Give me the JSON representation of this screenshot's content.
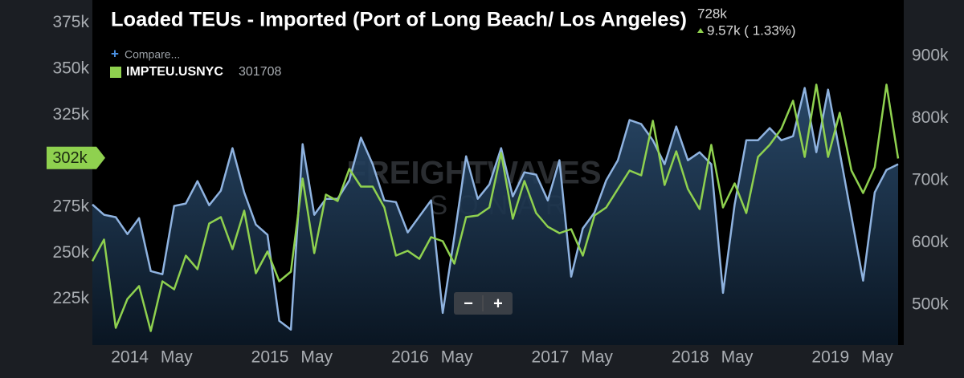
{
  "chart_data": {
    "type": "line",
    "title": "Loaded TEUs - Imported (Port of Long Beach/ Los Angeles)",
    "current": {
      "value_label": "728k",
      "change_label": "9.57k ( 1.33%)"
    },
    "compare": "Compare...",
    "legend_value": 301708,
    "marker": {
      "value": 301708,
      "label": "302k"
    },
    "controls": [
      "−",
      "+"
    ],
    "watermark": [
      "FREIGHTWAVES",
      "SONAR"
    ],
    "x": [
      "2013-10",
      "2013-11",
      "2013-12",
      "2014-01",
      "2014-02",
      "2014-03",
      "2014-04",
      "2014-05",
      "2014-06",
      "2014-07",
      "2014-08",
      "2014-09",
      "2014-10",
      "2014-11",
      "2014-12",
      "2015-01",
      "2015-02",
      "2015-03",
      "2015-04",
      "2015-05",
      "2015-06",
      "2015-07",
      "2015-08",
      "2015-09",
      "2015-10",
      "2015-11",
      "2015-12",
      "2016-01",
      "2016-02",
      "2016-03",
      "2016-04",
      "2016-05",
      "2016-06",
      "2016-07",
      "2016-08",
      "2016-09",
      "2016-10",
      "2016-11",
      "2016-12",
      "2017-01",
      "2017-02",
      "2017-03",
      "2017-04",
      "2017-05",
      "2017-06",
      "2017-07",
      "2017-08",
      "2017-09",
      "2017-10",
      "2017-11",
      "2017-12",
      "2018-01",
      "2018-02",
      "2018-03",
      "2018-04",
      "2018-05",
      "2018-06",
      "2018-07",
      "2018-08",
      "2018-09",
      "2018-10",
      "2018-11",
      "2018-12",
      "2019-01",
      "2019-02",
      "2019-03",
      "2019-04",
      "2019-05",
      "2019-06",
      "2019-07"
    ],
    "xticks": [
      {
        "value": "2014-01",
        "label": "2014"
      },
      {
        "value": "2014-05",
        "label": "May"
      },
      {
        "value": "2015-01",
        "label": "2015"
      },
      {
        "value": "2015-05",
        "label": "May"
      },
      {
        "value": "2016-01",
        "label": "2016"
      },
      {
        "value": "2016-05",
        "label": "May"
      },
      {
        "value": "2017-01",
        "label": "2017"
      },
      {
        "value": "2017-05",
        "label": "May"
      },
      {
        "value": "2018-01",
        "label": "2018"
      },
      {
        "value": "2018-05",
        "label": "May"
      },
      {
        "value": "2019-01",
        "label": "2019"
      },
      {
        "value": "2019-05",
        "label": "May"
      }
    ],
    "series": [
      {
        "color": "#8fb3e0",
        "values": [
          276400,
          270800,
          269500,
          260300,
          269000,
          240200,
          238500,
          275600,
          276900,
          289100,
          276000,
          283900,
          307000,
          283000,
          265500,
          259900,
          213200,
          208400,
          309200,
          270800,
          279500,
          279500,
          289500,
          312700,
          298300,
          278600,
          277700,
          261200,
          269900,
          278600,
          217500,
          259000,
          302600,
          279500,
          287300,
          307000,
          280800,
          293900,
          292600,
          278600,
          300400,
          237200,
          263400,
          272100,
          289500,
          300400,
          322300,
          320100,
          311300,
          298300,
          318800,
          300400,
          304800,
          298300,
          228400,
          276400,
          311300,
          311300,
          317900,
          311300,
          313500,
          339700,
          304800,
          338800,
          304800,
          269900,
          235000,
          283000,
          295200,
          298300
        ]
      },
      {
        "name": "IMPTEU.USNYC",
        "color": "#8fd14f",
        "axis": "y2",
        "values": [
          570400,
          605200,
          463300,
          509700,
          530400,
          458100,
          538100,
          525200,
          579400,
          557500,
          631000,
          641300,
          589700,
          651600,
          551000,
          585900,
          538100,
          553600,
          703200,
          583300,
          677400,
          667100,
          718700,
          690300,
          690300,
          656800,
          579400,
          587100,
          574200,
          609100,
          602600,
          566500,
          641300,
          643900,
          656800,
          744500,
          638700,
          699400,
          647800,
          625800,
          615500,
          622000,
          579400,
          643900,
          656800,
          686500,
          716100,
          708400,
          796100,
          692900,
          747100,
          686500,
          654200,
          757400,
          656800,
          695500,
          647800,
          738100,
          757400,
          783200,
          828400,
          738100,
          854200,
          738100,
          809000,
          716100,
          680000,
          721300,
          854200,
          735500
        ]
      }
    ],
    "ylim": [
      200000,
      387500
    ],
    "yticks": [
      {
        "value": 225000,
        "label": "225k"
      },
      {
        "value": 250000,
        "label": "250k"
      },
      {
        "value": 275000,
        "label": "275k"
      },
      {
        "value": 325000,
        "label": "325k"
      },
      {
        "value": 350000,
        "label": "350k"
      },
      {
        "value": 375000,
        "label": "375k"
      }
    ],
    "y2lim": [
      435500,
      990300
    ],
    "y2ticks": [
      {
        "value": 500000,
        "label": "500k"
      },
      {
        "value": 600000,
        "label": "600k"
      },
      {
        "value": 700000,
        "label": "700k"
      },
      {
        "value": 800000,
        "label": "800k"
      },
      {
        "value": 900000,
        "label": "900k"
      }
    ],
    "grid": false
  }
}
